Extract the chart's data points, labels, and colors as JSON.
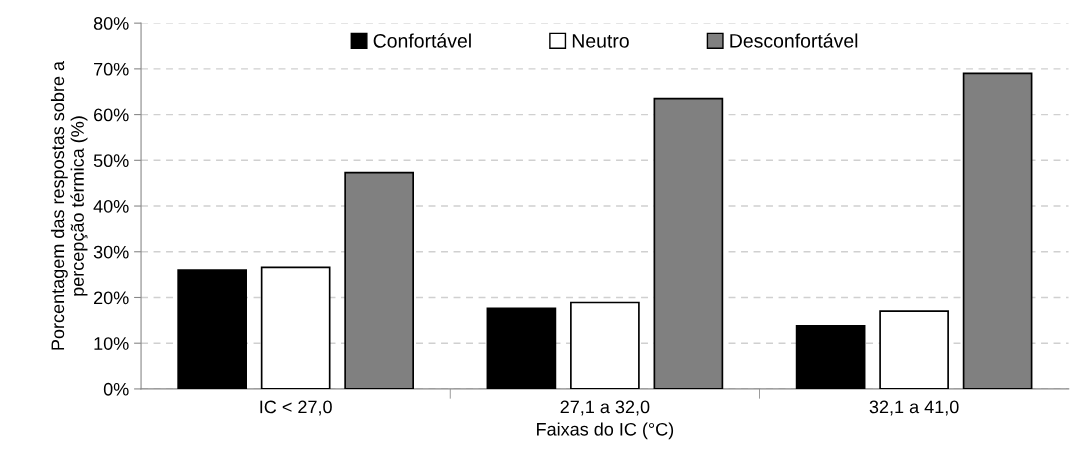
{
  "chart_data": {
    "type": "bar",
    "xlabel": "Faixas do IC (°C)",
    "ylabel": "Porcentagem das respostas sobre a\npercepção térmica (%)",
    "categories": [
      "IC < 27,0",
      "27,1 a 32,0",
      "32,1 a 41,0"
    ],
    "series": [
      {
        "name": "Confortável",
        "color": "#000000",
        "values": [
          26.0,
          17.6,
          13.8
        ]
      },
      {
        "name": "Neutro",
        "color": "#ffffff",
        "values": [
          26.6,
          18.9,
          17.0
        ]
      },
      {
        "name": "Desconfortável",
        "color": "#808080",
        "values": [
          47.3,
          63.5,
          69.0
        ]
      }
    ],
    "ylim": [
      0,
      80
    ],
    "yticks": [
      {
        "value": 0,
        "label": "0%"
      },
      {
        "value": 10,
        "label": "10%"
      },
      {
        "value": 20,
        "label": "20%"
      },
      {
        "value": 30,
        "label": "30%"
      },
      {
        "value": 40,
        "label": "40%"
      },
      {
        "value": 50,
        "label": "50%"
      },
      {
        "value": 60,
        "label": "60%"
      },
      {
        "value": 70,
        "label": "70%"
      },
      {
        "value": 80,
        "label": "80%"
      }
    ],
    "grid": "y",
    "legend": "top"
  }
}
